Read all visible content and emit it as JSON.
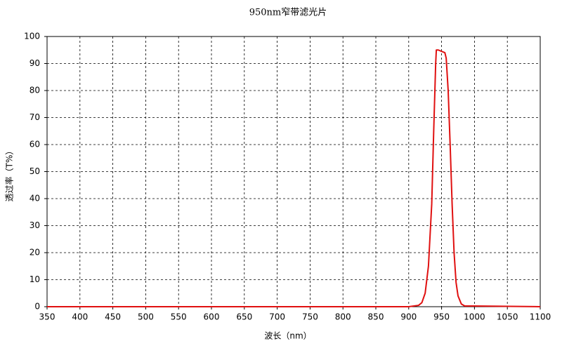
{
  "chart_data": {
    "type": "line",
    "title": "950nm窄带滤光片",
    "x_label": "波长（nm）",
    "y_label": "透过率（T%）",
    "x": [
      350,
      900,
      915,
      920,
      925,
      930,
      935,
      938,
      941,
      942,
      945,
      950,
      955,
      957,
      960,
      963,
      966,
      969,
      972,
      975,
      980,
      985,
      1100
    ],
    "values": [
      0,
      0,
      0.5,
      1.5,
      5,
      15,
      38,
      65,
      90,
      95,
      95,
      94.5,
      94,
      92,
      80,
      60,
      38,
      20,
      9,
      4,
      1,
      0.3,
      0
    ],
    "color": "#e01010",
    "xlim": [
      350,
      1100
    ],
    "xticks": [
      350,
      400,
      450,
      500,
      550,
      600,
      650,
      700,
      750,
      800,
      850,
      900,
      950,
      1000,
      1050,
      1100
    ],
    "ylim": [
      0,
      100
    ],
    "yticks": [
      0,
      10,
      20,
      30,
      40,
      50,
      60,
      70,
      80,
      90,
      100
    ],
    "grid": true
  }
}
